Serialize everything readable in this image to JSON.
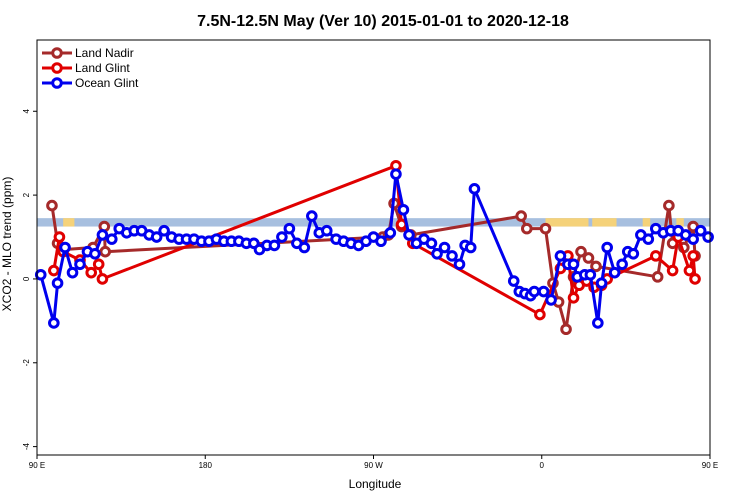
{
  "chart_data": {
    "type": "line",
    "title": "7.5N-12.5N May (Ver 10)   2015-01-01 to 2020-12-18",
    "xlabel": "Longitude",
    "ylabel": "XCO2 - MLO trend (ppm)",
    "xlim": [
      90,
      450
    ],
    "ylim": [
      -4.2,
      5.7
    ],
    "x_ticks": [
      {
        "value": 90,
        "label": "90 E"
      },
      {
        "value": 180,
        "label": "180"
      },
      {
        "value": 270,
        "label": "90 W"
      },
      {
        "value": 360,
        "label": "0"
      },
      {
        "value": 450,
        "label": "90 E"
      },
      {
        "value": 540,
        "label": "180"
      }
    ],
    "y_ticks": [
      {
        "value": -4,
        "label": "-4"
      },
      {
        "value": -2,
        "label": "-2"
      },
      {
        "value": 0,
        "label": "0"
      },
      {
        "value": 2,
        "label": "2"
      },
      {
        "value": 4,
        "label": "4"
      }
    ],
    "legend_position": "top-left",
    "land_band": {
      "y_range": [
        1.25,
        1.45
      ],
      "ocean_color": "#a7bfdf",
      "land_color": "#f5d27a",
      "land_segments": [
        [
          104,
          110
        ],
        [
          362,
          385
        ],
        [
          387,
          400
        ],
        [
          414,
          418
        ],
        [
          432,
          436
        ]
      ]
    },
    "series": [
      {
        "name": "Land Nadir",
        "color": "#a52a2a",
        "points": [
          [
            98,
            1.75
          ],
          [
            101,
            0.85
          ],
          [
            104,
            0.7
          ],
          [
            120,
            0.75
          ],
          [
            126,
            1.25
          ],
          [
            126.5,
            0.65
          ],
          [
            275,
            1.0
          ],
          [
            278,
            1.05
          ],
          [
            281,
            1.8
          ],
          [
            285,
            1.25
          ],
          [
            290,
            1.05
          ],
          [
            349,
            1.5
          ],
          [
            352,
            1.2
          ],
          [
            362,
            1.2
          ],
          [
            366,
            -0.1
          ],
          [
            369,
            -0.55
          ],
          [
            373,
            -1.2
          ],
          [
            377,
            0.05
          ],
          [
            381,
            0.65
          ],
          [
            385,
            0.5
          ],
          [
            389,
            0.3
          ],
          [
            422,
            0.05
          ],
          [
            428,
            1.75
          ],
          [
            430,
            0.85
          ],
          [
            436,
            0.75
          ],
          [
            441,
            1.25
          ],
          [
            442,
            0.55
          ]
        ]
      },
      {
        "name": "Land Glint",
        "color": "#e00000",
        "points": [
          [
            99,
            0.2
          ],
          [
            102,
            1.0
          ],
          [
            104,
            0.65
          ],
          [
            113,
            0.45
          ],
          [
            119,
            0.15
          ],
          [
            123,
            0.35
          ],
          [
            125,
            0.0
          ],
          [
            282,
            2.7
          ],
          [
            285,
            1.3
          ],
          [
            291,
            0.85
          ],
          [
            359,
            -0.85
          ],
          [
            370,
            0.25
          ],
          [
            374,
            0.55
          ],
          [
            377,
            -0.45
          ],
          [
            380,
            -0.15
          ],
          [
            384,
            -0.05
          ],
          [
            388,
            -0.2
          ],
          [
            392,
            -0.15
          ],
          [
            395,
            0.0
          ],
          [
            421,
            0.55
          ],
          [
            430,
            0.2
          ],
          [
            433,
            1.0
          ],
          [
            439,
            0.2
          ],
          [
            441,
            0.55
          ],
          [
            442,
            0.0
          ]
        ]
      },
      {
        "name": "Ocean Glint",
        "color": "#0000ee",
        "points": [
          [
            92,
            0.1
          ],
          [
            99,
            -1.05
          ],
          [
            101,
            -0.1
          ],
          [
            105,
            0.75
          ],
          [
            109,
            0.15
          ],
          [
            113,
            0.35
          ],
          [
            117,
            0.65
          ],
          [
            121,
            0.6
          ],
          [
            125,
            1.05
          ],
          [
            130,
            0.95
          ],
          [
            134,
            1.2
          ],
          [
            138,
            1.1
          ],
          [
            142,
            1.15
          ],
          [
            146,
            1.15
          ],
          [
            150,
            1.05
          ],
          [
            154,
            1.0
          ],
          [
            158,
            1.15
          ],
          [
            162,
            1.0
          ],
          [
            166,
            0.95
          ],
          [
            170,
            0.95
          ],
          [
            174,
            0.95
          ],
          [
            178,
            0.9
          ],
          [
            182,
            0.9
          ],
          [
            186,
            0.95
          ],
          [
            190,
            0.9
          ],
          [
            194,
            0.9
          ],
          [
            198,
            0.9
          ],
          [
            202,
            0.85
          ],
          [
            206,
            0.85
          ],
          [
            209,
            0.7
          ],
          [
            213,
            0.8
          ],
          [
            217,
            0.8
          ],
          [
            221,
            1.0
          ],
          [
            225,
            1.2
          ],
          [
            229,
            0.85
          ],
          [
            233,
            0.75
          ],
          [
            237,
            1.5
          ],
          [
            241,
            1.1
          ],
          [
            245,
            1.15
          ],
          [
            250,
            0.95
          ],
          [
            254,
            0.9
          ],
          [
            258,
            0.85
          ],
          [
            262,
            0.8
          ],
          [
            266,
            0.9
          ],
          [
            270,
            1.0
          ],
          [
            274,
            0.9
          ],
          [
            279,
            1.1
          ],
          [
            282,
            2.5
          ],
          [
            286,
            1.65
          ],
          [
            289,
            1.05
          ],
          [
            293,
            0.85
          ],
          [
            297,
            0.95
          ],
          [
            301,
            0.85
          ],
          [
            304,
            0.6
          ],
          [
            308,
            0.75
          ],
          [
            312,
            0.55
          ],
          [
            316,
            0.35
          ],
          [
            319,
            0.8
          ],
          [
            322,
            0.75
          ],
          [
            324,
            2.15
          ],
          [
            345,
            -0.05
          ],
          [
            348,
            -0.3
          ],
          [
            351,
            -0.35
          ],
          [
            354,
            -0.4
          ],
          [
            356,
            -0.3
          ],
          [
            361,
            -0.3
          ],
          [
            365,
            -0.5
          ],
          [
            370,
            0.55
          ],
          [
            374,
            0.35
          ],
          [
            377,
            0.35
          ],
          [
            379,
            0.05
          ],
          [
            383,
            0.1
          ],
          [
            386,
            0.1
          ],
          [
            390,
            -1.05
          ],
          [
            392,
            -0.1
          ],
          [
            395,
            0.75
          ],
          [
            399,
            0.15
          ],
          [
            403,
            0.35
          ],
          [
            406,
            0.65
          ],
          [
            409,
            0.6
          ],
          [
            413,
            1.05
          ],
          [
            417,
            0.95
          ],
          [
            421,
            1.2
          ],
          [
            425,
            1.1
          ],
          [
            429,
            1.15
          ],
          [
            433,
            1.15
          ],
          [
            437,
            1.05
          ],
          [
            441,
            0.95
          ],
          [
            445,
            1.15
          ],
          [
            449,
            1.0
          ]
        ]
      }
    ]
  }
}
